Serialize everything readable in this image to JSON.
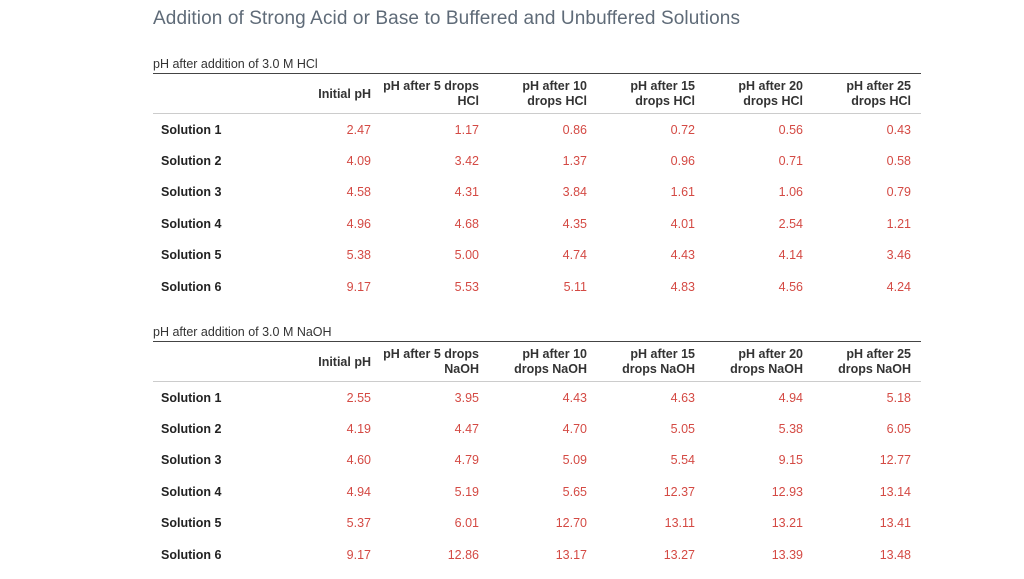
{
  "title": "Addition of Strong Acid or Base to Buffered and Unbuffered Solutions",
  "tables": [
    {
      "caption": "pH after addition of 3.0 M HCl",
      "headers": [
        "Initial pH",
        "pH after 5 drops HCl",
        "pH after 10 drops HCl",
        "pH after 15 drops HCl",
        "pH after 20 drops HCl",
        "pH after 25 drops HCl"
      ],
      "rows": [
        {
          "label": "Solution 1",
          "values": [
            "2.47",
            "1.17",
            "0.86",
            "0.72",
            "0.56",
            "0.43"
          ]
        },
        {
          "label": "Solution 2",
          "values": [
            "4.09",
            "3.42",
            "1.37",
            "0.96",
            "0.71",
            "0.58"
          ]
        },
        {
          "label": "Solution 3",
          "values": [
            "4.58",
            "4.31",
            "3.84",
            "1.61",
            "1.06",
            "0.79"
          ]
        },
        {
          "label": "Solution 4",
          "values": [
            "4.96",
            "4.68",
            "4.35",
            "4.01",
            "2.54",
            "1.21"
          ]
        },
        {
          "label": "Solution 5",
          "values": [
            "5.38",
            "5.00",
            "4.74",
            "4.43",
            "4.14",
            "3.46"
          ]
        },
        {
          "label": "Solution 6",
          "values": [
            "9.17",
            "5.53",
            "5.11",
            "4.83",
            "4.56",
            "4.24"
          ]
        }
      ]
    },
    {
      "caption": "pH after addition of 3.0 M NaOH",
      "headers": [
        "Initial pH",
        "pH after 5 drops NaOH",
        "pH after 10 drops NaOH",
        "pH after 15 drops NaOH",
        "pH after 20 drops NaOH",
        "pH after 25 drops NaOH"
      ],
      "rows": [
        {
          "label": "Solution 1",
          "values": [
            "2.55",
            "3.95",
            "4.43",
            "4.63",
            "4.94",
            "5.18"
          ]
        },
        {
          "label": "Solution 2",
          "values": [
            "4.19",
            "4.47",
            "4.70",
            "5.05",
            "5.38",
            "6.05"
          ]
        },
        {
          "label": "Solution 3",
          "values": [
            "4.60",
            "4.79",
            "5.09",
            "5.54",
            "9.15",
            "12.77"
          ]
        },
        {
          "label": "Solution 4",
          "values": [
            "4.94",
            "5.19",
            "5.65",
            "12.37",
            "12.93",
            "13.14"
          ]
        },
        {
          "label": "Solution 5",
          "values": [
            "5.37",
            "6.01",
            "12.70",
            "13.11",
            "13.21",
            "13.41"
          ]
        },
        {
          "label": "Solution 6",
          "values": [
            "9.17",
            "12.86",
            "13.17",
            "13.27",
            "13.39",
            "13.48"
          ]
        }
      ]
    }
  ]
}
